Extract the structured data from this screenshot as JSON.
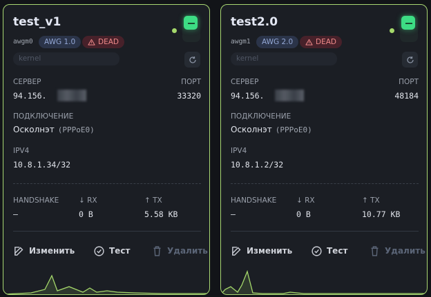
{
  "servers": [
    {
      "title": "test_v1",
      "interface": "awgm0",
      "protocol": "AWG 1.0",
      "status": "DEAD",
      "engine_placeholder": "kernel",
      "server_label": "СЕРВЕР",
      "server": "94.156.",
      "port_label": "ПОРТ",
      "port": "33320",
      "connection_label": "ПОДКЛЮЧЕНИЕ",
      "connection": "Осколнэт",
      "connection_interface": "(PPPoE0)",
      "ipv4_label": "IPV4",
      "ipv4": "10.8.1.34/32",
      "handshake_label": "HANDSHAKE",
      "handshake": "–",
      "rx_label": "↓ RX",
      "rx": "0 B",
      "tx_label": "↑ TX",
      "tx": "5.58 KB",
      "actions": [
        "Изменить",
        "Тест",
        "Удалить"
      ]
    },
    {
      "title": "test2.0",
      "interface": "awgm1",
      "protocol": "AWG 2.0",
      "status": "DEAD",
      "engine_placeholder": "kernel",
      "server_label": "СЕРВЕР",
      "server": "94.156.",
      "port_label": "ПОРТ",
      "port": "48184",
      "connection_label": "ПОДКЛЮЧЕНИЕ",
      "connection": "Осколнэт",
      "connection_interface": "(PPPoE0)",
      "ipv4_label": "IPV4",
      "ipv4": "10.8.1.2/32",
      "handshake_label": "HANDSHAKE",
      "handshake": "–",
      "rx_label": "↓ RX",
      "rx": "0 B",
      "tx_label": "↑ TX",
      "tx": "10.77 KB",
      "actions": [
        "Изменить",
        "Тест",
        "Удалить"
      ]
    }
  ]
}
